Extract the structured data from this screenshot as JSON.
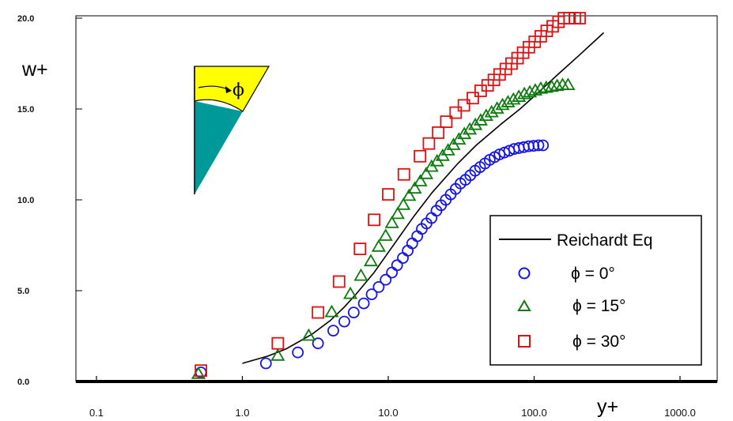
{
  "chart_data": {
    "type": "scatter",
    "title": "",
    "xlabel": "y+",
    "ylabel": "w+",
    "xscale": "log",
    "xlim": [
      0.1,
      1000.0
    ],
    "ylim": [
      0.0,
      20.0
    ],
    "x_ticks": [
      "0.1",
      "1.0",
      "10.0",
      "100.0",
      "1000.0"
    ],
    "y_ticks": [
      "0.0",
      "5.0",
      "10.0",
      "15.0",
      "20.0"
    ],
    "grid": false,
    "legend": {
      "position": "bottom-right",
      "entries": [
        "Reichardt Eq",
        "ϕ = 0°",
        "ϕ = 15°",
        "ϕ = 30°"
      ]
    },
    "inset_label": "ϕ",
    "series": [
      {
        "name": "Reichardt Eq",
        "kind": "line",
        "color": "#000000",
        "points": [
          [
            1.0,
            1.0
          ],
          [
            1.5,
            1.4
          ],
          [
            2.0,
            1.8
          ],
          [
            3.0,
            2.6
          ],
          [
            4.0,
            3.35
          ],
          [
            5.0,
            4.1
          ],
          [
            6.0,
            4.8
          ],
          [
            8.0,
            6.0
          ],
          [
            10.0,
            7.1
          ],
          [
            12.0,
            8.0
          ],
          [
            15.0,
            9.1
          ],
          [
            20.0,
            10.4
          ],
          [
            30.0,
            12.0
          ],
          [
            40.0,
            13.0
          ],
          [
            60.0,
            14.2
          ],
          [
            80.0,
            15.0
          ],
          [
            100.0,
            15.7
          ],
          [
            150.0,
            17.0
          ],
          [
            200.0,
            17.9
          ],
          [
            300.0,
            19.2
          ]
        ]
      },
      {
        "name": "ϕ = 0°",
        "kind": "marker",
        "marker": "circle",
        "color": "#1414e6",
        "points": [
          [
            0.52,
            0.5
          ],
          [
            1.45,
            1.0
          ],
          [
            2.4,
            1.6
          ],
          [
            3.3,
            2.1
          ],
          [
            4.2,
            2.8
          ],
          [
            5.0,
            3.3
          ],
          [
            5.8,
            3.8
          ],
          [
            6.8,
            4.3
          ],
          [
            7.7,
            4.8
          ],
          [
            8.6,
            5.2
          ],
          [
            9.6,
            5.6
          ],
          [
            10.6,
            6.0
          ],
          [
            11.5,
            6.4
          ],
          [
            12.6,
            6.8
          ],
          [
            13.6,
            7.2
          ],
          [
            14.6,
            7.6
          ],
          [
            15.8,
            8.0
          ],
          [
            17.0,
            8.4
          ],
          [
            18.3,
            8.7
          ],
          [
            19.8,
            9.0
          ],
          [
            21.4,
            9.4
          ],
          [
            23.0,
            9.7
          ],
          [
            24.8,
            10.0
          ],
          [
            26.8,
            10.3
          ],
          [
            29.0,
            10.6
          ],
          [
            31.3,
            10.9
          ],
          [
            33.8,
            11.1
          ],
          [
            36.5,
            11.35
          ],
          [
            39.4,
            11.6
          ],
          [
            42.6,
            11.8
          ],
          [
            46.0,
            12.0
          ],
          [
            49.6,
            12.2
          ],
          [
            53.6,
            12.35
          ],
          [
            57.9,
            12.5
          ],
          [
            62.5,
            12.6
          ],
          [
            67.5,
            12.7
          ],
          [
            72.9,
            12.8
          ],
          [
            78.7,
            12.85
          ],
          [
            85.0,
            12.9
          ],
          [
            91.8,
            12.95
          ],
          [
            99.1,
            12.97
          ],
          [
            107.0,
            13.0
          ],
          [
            115.0,
            13.0
          ]
        ]
      },
      {
        "name": "ϕ = 15°",
        "kind": "marker",
        "marker": "triangle",
        "color": "#0d7a0d",
        "points": [
          [
            0.5,
            0.4
          ],
          [
            1.75,
            1.4
          ],
          [
            2.85,
            2.5
          ],
          [
            4.1,
            3.8
          ],
          [
            5.5,
            4.8
          ],
          [
            6.5,
            5.8
          ],
          [
            7.6,
            6.6
          ],
          [
            8.6,
            7.4
          ],
          [
            9.6,
            8.0
          ],
          [
            10.6,
            8.7
          ],
          [
            11.6,
            9.2
          ],
          [
            12.7,
            9.7
          ],
          [
            13.9,
            10.2
          ],
          [
            15.2,
            10.6
          ],
          [
            16.6,
            11.0
          ],
          [
            18.2,
            11.4
          ],
          [
            19.8,
            11.8
          ],
          [
            21.6,
            12.1
          ],
          [
            23.6,
            12.4
          ],
          [
            25.7,
            12.7
          ],
          [
            28.0,
            13.0
          ],
          [
            30.5,
            13.3
          ],
          [
            33.2,
            13.6
          ],
          [
            36.2,
            13.85
          ],
          [
            39.5,
            14.1
          ],
          [
            43.0,
            14.35
          ],
          [
            46.9,
            14.6
          ],
          [
            51.1,
            14.8
          ],
          [
            55.7,
            15.0
          ],
          [
            60.7,
            15.2
          ],
          [
            66.2,
            15.35
          ],
          [
            72.1,
            15.5
          ],
          [
            78.6,
            15.65
          ],
          [
            85.7,
            15.8
          ],
          [
            93.4,
            15.9
          ],
          [
            101.8,
            16.0
          ],
          [
            111.0,
            16.1
          ],
          [
            121.0,
            16.15
          ],
          [
            131.9,
            16.2
          ],
          [
            143.7,
            16.25
          ],
          [
            156.7,
            16.3
          ],
          [
            170.8,
            16.3
          ]
        ]
      },
      {
        "name": "ϕ = 30°",
        "kind": "marker",
        "marker": "square",
        "color": "#e01010",
        "points": [
          [
            0.52,
            0.6
          ],
          [
            1.75,
            2.1
          ],
          [
            3.3,
            3.8
          ],
          [
            4.6,
            5.5
          ],
          [
            6.4,
            7.3
          ],
          [
            8.0,
            8.9
          ],
          [
            10.0,
            10.3
          ],
          [
            12.8,
            11.4
          ],
          [
            16.5,
            12.4
          ],
          [
            19.0,
            13.1
          ],
          [
            22.0,
            13.7
          ],
          [
            25.0,
            14.3
          ],
          [
            29.0,
            14.8
          ],
          [
            33.0,
            15.2
          ],
          [
            38.0,
            15.6
          ],
          [
            43.0,
            16.0
          ],
          [
            48.0,
            16.3
          ],
          [
            53.0,
            16.6
          ],
          [
            58.0,
            16.9
          ],
          [
            64.0,
            17.2
          ],
          [
            70.0,
            17.5
          ],
          [
            77.0,
            17.8
          ],
          [
            84.0,
            18.1
          ],
          [
            92.0,
            18.4
          ],
          [
            101.0,
            18.7
          ],
          [
            111.0,
            19.0
          ],
          [
            122.0,
            19.3
          ],
          [
            134.0,
            19.55
          ],
          [
            147.0,
            19.8
          ],
          [
            160.0,
            20.0
          ],
          [
            175.0,
            20.0
          ],
          [
            190.0,
            20.0
          ],
          [
            205.0,
            20.0
          ]
        ]
      }
    ]
  }
}
